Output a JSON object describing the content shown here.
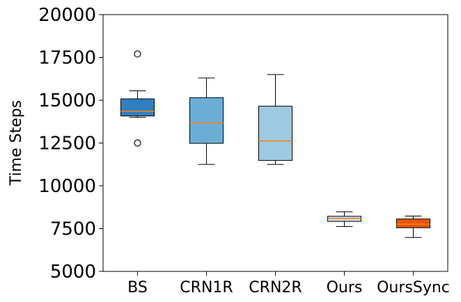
{
  "chart_data": {
    "type": "box",
    "title": "",
    "xlabel": "",
    "ylabel": "Time Steps",
    "ylim": [
      5000,
      20000
    ],
    "yticks": [
      5000,
      7500,
      10000,
      12500,
      15000,
      17500,
      20000
    ],
    "ytick_labels": [
      "5000",
      "7500",
      "10000",
      "12500",
      "15000",
      "17500",
      "20000"
    ],
    "grid": false,
    "legend": "none",
    "categories": [
      "BS",
      "CRN1R",
      "CRN2R",
      "Ours",
      "OursSync"
    ],
    "boxes": [
      {
        "name": "BS",
        "whisker_low": 14000,
        "q1": 14080,
        "median": 14350,
        "q3": 15080,
        "whisker_high": 15550,
        "outliers": [
          17700,
          12500
        ],
        "color": "#2f7fc1"
      },
      {
        "name": "CRN1R",
        "whisker_low": 11250,
        "q1": 12480,
        "median": 13680,
        "q3": 15150,
        "whisker_high": 16300,
        "outliers": [],
        "color": "#6aaed6"
      },
      {
        "name": "CRN2R",
        "whisker_low": 11250,
        "q1": 11480,
        "median": 12620,
        "q3": 14650,
        "whisker_high": 16500,
        "outliers": [],
        "color": "#9ecae1"
      },
      {
        "name": "Ours",
        "whisker_low": 7620,
        "q1": 7920,
        "median": 8100,
        "q3": 8220,
        "whisker_high": 8480,
        "outliers": [],
        "color": "#c6dbef"
      },
      {
        "name": "OursSync",
        "whisker_low": 6980,
        "q1": 7550,
        "median": 7760,
        "q3": 8060,
        "whisker_high": 8230,
        "outliers": [],
        "color": "#e6550d"
      }
    ],
    "median_color": "#ff7f0e"
  }
}
